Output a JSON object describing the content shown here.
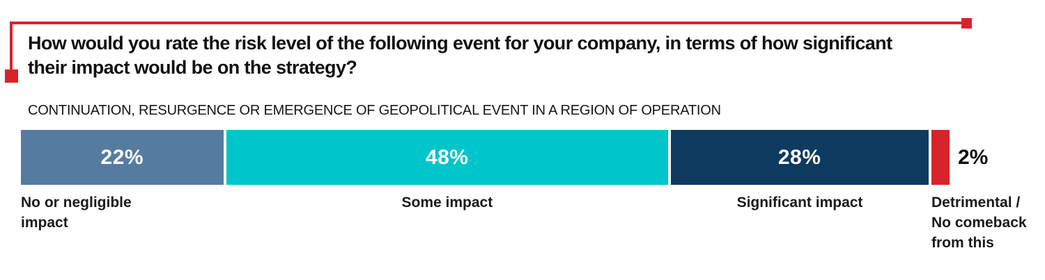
{
  "colors": {
    "accent_red": "#D8232A",
    "bar_label_text": "#FFFFFF",
    "background": "#FFFFFF",
    "body_text": "#161616"
  },
  "header": {
    "question": "How would you rate the risk level of the following event for your company, in terms of how significant\ntheir impact would be on the strategy?",
    "event_label": "CONTINUATION, RESURGENCE OR EMERGENCE OF GEOPOLITICAL EVENT IN A REGION OF OPERATION"
  },
  "chart_data": {
    "type": "bar",
    "variant": "horizontal-stacked-100percent",
    "title": "How would you rate the risk level of the following event for your company, in terms of how significant their impact would be on the strategy?",
    "subtitle": "CONTINUATION, RESURGENCE OR EMERGENCE OF GEOPOLITICAL EVENT IN A REGION OF OPERATION",
    "unit": "%",
    "xlim": [
      0,
      100
    ],
    "grid": false,
    "legend_position": "category-labels-below-bar",
    "categories": [
      "No or negligible impact",
      "Some impact",
      "Significant impact",
      "Detrimental / No comeback from this"
    ],
    "values": [
      22,
      48,
      28,
      2
    ],
    "segments": [
      {
        "category_label": "No or negligible\nimpact",
        "value": 22,
        "display": "22%",
        "color": "#567BA0",
        "value_label_position": "inside"
      },
      {
        "category_label": "Some impact",
        "value": 48,
        "display": "48%",
        "color": "#00C5CB",
        "value_label_position": "inside"
      },
      {
        "category_label": "Significant impact",
        "value": 28,
        "display": "28%",
        "color": "#0E3A60",
        "value_label_position": "inside"
      },
      {
        "category_label": "Detrimental /\nNo comeback\nfrom this",
        "value": 2,
        "display": "2%",
        "color": "#D8232A",
        "value_label_position": "outside-right"
      }
    ]
  }
}
